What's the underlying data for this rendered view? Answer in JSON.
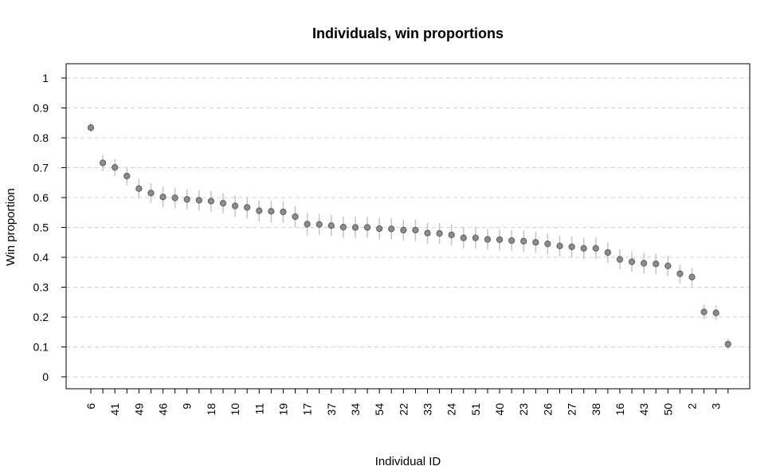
{
  "chart_data": {
    "type": "scatter",
    "title": "Individuals, win proportions",
    "xlabel": "Individual ID",
    "ylabel": "Win proportion",
    "ylim": [
      0,
      1
    ],
    "y_ticks": [
      0,
      0.1,
      0.2,
      0.3,
      0.4,
      0.5,
      0.6,
      0.7,
      0.8,
      0.9,
      1
    ],
    "y_tick_labels": [
      "0",
      "0.1",
      "0.2",
      "0.3",
      "0.4",
      "0.5",
      "0.6",
      "0.7",
      "0.8",
      "0.9",
      "1"
    ],
    "grid": "horizontal dashed",
    "x_tick_labels": [
      "6",
      "",
      "41",
      "",
      "49",
      "",
      "46",
      "",
      "9",
      "",
      "18",
      "",
      "10",
      "",
      "11",
      "",
      "19",
      "",
      "17",
      "",
      "37",
      "",
      "34",
      "",
      "54",
      "",
      "22",
      "",
      "33",
      "",
      "24",
      "",
      "51",
      "",
      "40",
      "",
      "23",
      "",
      "26",
      "",
      "27",
      "",
      "38",
      "",
      "16",
      "",
      "43",
      "",
      "50",
      "",
      "2",
      "",
      "3",
      ""
    ],
    "values": [
      0.834,
      0.716,
      0.701,
      0.672,
      0.63,
      0.615,
      0.602,
      0.599,
      0.594,
      0.591,
      0.588,
      0.581,
      0.572,
      0.567,
      0.556,
      0.554,
      0.552,
      0.536,
      0.511,
      0.51,
      0.506,
      0.501,
      0.5,
      0.5,
      0.496,
      0.495,
      0.491,
      0.491,
      0.481,
      0.48,
      0.475,
      0.465,
      0.465,
      0.46,
      0.459,
      0.456,
      0.454,
      0.45,
      0.445,
      0.438,
      0.435,
      0.43,
      0.43,
      0.416,
      0.393,
      0.385,
      0.38,
      0.378,
      0.371,
      0.345,
      0.334,
      0.217,
      0.214,
      0.109
    ],
    "lower": [
      0.818,
      0.689,
      0.672,
      0.641,
      0.597,
      0.582,
      0.566,
      0.565,
      0.561,
      0.556,
      0.553,
      0.547,
      0.536,
      0.53,
      0.52,
      0.517,
      0.516,
      0.5,
      0.474,
      0.475,
      0.471,
      0.465,
      0.465,
      0.465,
      0.46,
      0.46,
      0.456,
      0.455,
      0.445,
      0.445,
      0.44,
      0.43,
      0.43,
      0.425,
      0.424,
      0.421,
      0.419,
      0.415,
      0.41,
      0.403,
      0.4,
      0.395,
      0.395,
      0.381,
      0.36,
      0.351,
      0.346,
      0.344,
      0.337,
      0.313,
      0.303,
      0.193,
      0.19,
      0.092
    ],
    "upper": [
      0.851,
      0.742,
      0.729,
      0.702,
      0.662,
      0.648,
      0.636,
      0.632,
      0.627,
      0.624,
      0.622,
      0.614,
      0.607,
      0.602,
      0.59,
      0.589,
      0.587,
      0.572,
      0.548,
      0.545,
      0.541,
      0.536,
      0.535,
      0.535,
      0.532,
      0.53,
      0.526,
      0.526,
      0.516,
      0.515,
      0.51,
      0.5,
      0.5,
      0.495,
      0.494,
      0.491,
      0.489,
      0.485,
      0.48,
      0.473,
      0.47,
      0.465,
      0.465,
      0.451,
      0.427,
      0.42,
      0.414,
      0.412,
      0.405,
      0.377,
      0.365,
      0.242,
      0.239,
      0.127
    ],
    "colors": {
      "point": "#8c8c8c",
      "point_stroke": "#5a5a5a",
      "errorbar": "#c4c4c4",
      "grid": "#d0d0d0",
      "axis": "#000000"
    }
  }
}
